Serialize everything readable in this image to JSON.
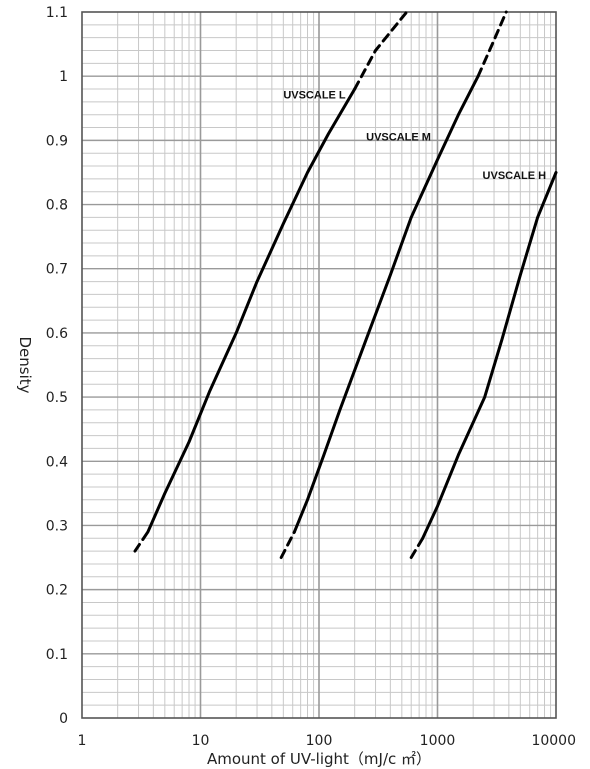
{
  "chart_data": {
    "type": "line",
    "xlabel": "Amount of UV-light（mJ/c ㎡）",
    "ylabel": "Density",
    "x_scale": "log",
    "xlim": [
      1,
      10000
    ],
    "ylim": [
      0,
      1.1
    ],
    "x_ticks": [
      "1",
      "10",
      "100",
      "1000",
      "10000"
    ],
    "y_ticks": [
      "0",
      "0.1",
      "0.2",
      "0.3",
      "0.4",
      "0.5",
      "0.6",
      "0.7",
      "0.8",
      "0.9",
      "1",
      "1.1"
    ],
    "grid": true,
    "colors": {
      "line": "#000000",
      "grid": "#c8c8c8",
      "grid_major": "#9a9a9a",
      "frame": "#555555"
    },
    "series": [
      {
        "name": "UVSCALE L",
        "dashed_low": [
          [
            2.8,
            0.26
          ],
          [
            3.6,
            0.29
          ]
        ],
        "solid": [
          [
            3.6,
            0.29
          ],
          [
            5,
            0.35
          ],
          [
            8,
            0.43
          ],
          [
            12,
            0.51
          ],
          [
            20,
            0.6
          ],
          [
            30,
            0.68
          ],
          [
            50,
            0.77
          ],
          [
            80,
            0.85
          ],
          [
            120,
            0.91
          ],
          [
            200,
            0.98
          ]
        ],
        "dashed_high": [
          [
            200,
            0.98
          ],
          [
            300,
            1.04
          ],
          [
            550,
            1.1
          ]
        ]
      },
      {
        "name": "UVSCALE M",
        "dashed_low": [
          [
            48,
            0.25
          ],
          [
            62,
            0.29
          ]
        ],
        "solid": [
          [
            62,
            0.29
          ],
          [
            80,
            0.34
          ],
          [
            110,
            0.41
          ],
          [
            150,
            0.48
          ],
          [
            250,
            0.59
          ],
          [
            400,
            0.69
          ],
          [
            600,
            0.78
          ],
          [
            1000,
            0.87
          ],
          [
            1500,
            0.94
          ],
          [
            2200,
            1.0
          ]
        ],
        "dashed_high": [
          [
            2200,
            1.0
          ],
          [
            2900,
            1.05
          ],
          [
            3800,
            1.1
          ]
        ]
      },
      {
        "name": "UVSCALE H",
        "dashed_low": [
          [
            600,
            0.25
          ],
          [
            750,
            0.28
          ]
        ],
        "solid": [
          [
            750,
            0.28
          ],
          [
            1000,
            0.33
          ],
          [
            1500,
            0.41
          ],
          [
            2500,
            0.5
          ],
          [
            3500,
            0.59
          ],
          [
            5000,
            0.69
          ],
          [
            7000,
            0.78
          ],
          [
            10000,
            0.85
          ]
        ]
      }
    ],
    "series_labels": [
      {
        "text": "UVSCALE L",
        "x": 50,
        "y": 0.965
      },
      {
        "text": "UVSCALE M",
        "x": 250,
        "y": 0.9
      },
      {
        "text": "UVSCALE H",
        "x": 2400,
        "y": 0.84
      }
    ]
  }
}
